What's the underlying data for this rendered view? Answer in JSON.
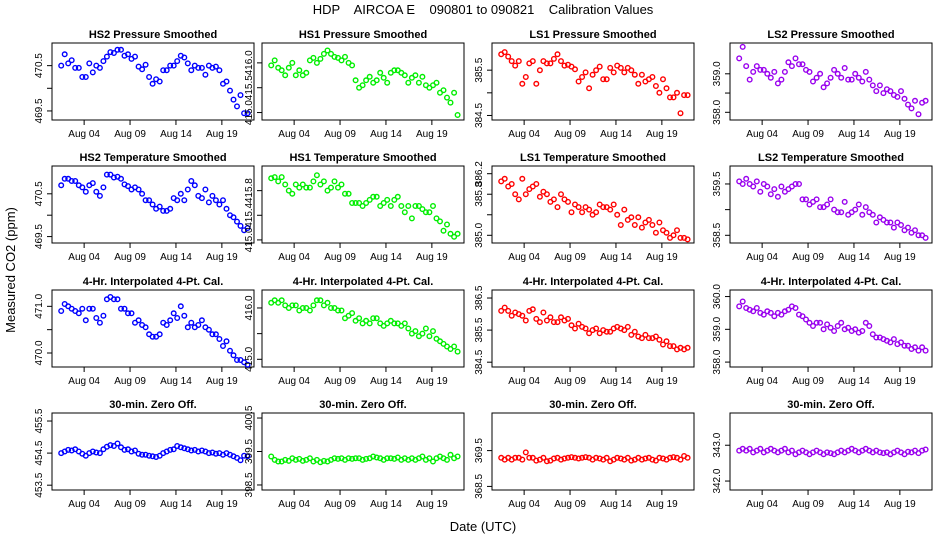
{
  "figure": {
    "title": "HDP    AIRCOA E    090801 to 090821    Calibration Values",
    "xlabel": "Date (UTC)",
    "ylabel": "Measured CO2 (ppm)"
  },
  "x_axis": {
    "range_days": [
      0.5,
      22.5
    ],
    "ticks": [
      {
        "day": 4,
        "label": "Aug 04"
      },
      {
        "day": 9,
        "label": "Aug 09"
      },
      {
        "day": 14,
        "label": "Aug 14"
      },
      {
        "day": 19,
        "label": "Aug 19"
      }
    ]
  },
  "colors": {
    "blue": "#0000ff",
    "green": "#00ee00",
    "red": "#ff0000",
    "purple": "#9900ee"
  },
  "chart_data": [
    {
      "id": "p00",
      "type": "scatter",
      "title": "HS2 Pressure Smoothed",
      "color": "blue",
      "ylim": [
        469.3,
        471.0
      ],
      "yticks": [
        469.5,
        470.0,
        470.5
      ],
      "yticklabels": [
        "469.5",
        "",
        "470.5"
      ],
      "y": [
        470.5,
        470.75,
        470.55,
        470.62,
        470.45,
        470.45,
        470.25,
        470.25,
        470.55,
        470.35,
        470.5,
        470.45,
        470.6,
        470.7,
        470.8,
        470.78,
        470.85,
        470.85,
        470.72,
        470.75,
        470.65,
        470.7,
        470.48,
        470.42,
        470.52,
        470.25,
        470.1,
        470.2,
        470.15,
        470.4,
        470.4,
        470.5,
        470.5,
        470.6,
        470.72,
        470.68,
        470.55,
        470.4,
        470.5,
        470.45,
        470.45,
        470.3,
        470.5,
        470.45,
        470.48,
        470.4,
        470.1,
        470.15,
        469.95,
        469.75,
        469.6,
        469.85,
        469.45,
        469.45
      ]
    },
    {
      "id": "p01",
      "type": "scatter",
      "title": "HS1 Pressure Smoothed",
      "color": "green",
      "ylim": [
        414.85,
        416.4
      ],
      "yticks": [
        415.0,
        415.5,
        416.0
      ],
      "yticklabels": [
        "415.0",
        "415.5",
        "416.0"
      ],
      "y": [
        415.95,
        416.05,
        415.9,
        415.85,
        415.75,
        415.9,
        416.0,
        415.75,
        415.85,
        415.75,
        415.8,
        416.05,
        416.1,
        416.0,
        416.08,
        416.18,
        416.25,
        416.18,
        416.12,
        416.1,
        416.05,
        416.12,
        416.0,
        415.95,
        415.65,
        415.5,
        415.55,
        415.65,
        415.72,
        415.6,
        415.65,
        415.8,
        415.7,
        415.6,
        415.8,
        415.85,
        415.85,
        415.8,
        415.75,
        415.6,
        415.7,
        415.75,
        415.6,
        415.72,
        415.55,
        415.5,
        415.55,
        415.6,
        415.4,
        415.45,
        415.3,
        415.2,
        415.4,
        414.95
      ]
    },
    {
      "id": "p02",
      "type": "scatter",
      "title": "LS1 Pressure Smoothed",
      "color": "red",
      "ylim": [
        384.4,
        386.1
      ],
      "yticks": [
        384.5,
        385.0,
        385.5
      ],
      "yticklabels": [
        "384.5",
        "",
        "385.5"
      ],
      "y": [
        385.85,
        385.9,
        385.8,
        385.7,
        385.6,
        385.7,
        385.2,
        385.35,
        385.65,
        385.7,
        385.2,
        385.5,
        385.7,
        385.65,
        385.65,
        385.75,
        385.85,
        385.7,
        385.6,
        385.62,
        385.58,
        385.52,
        385.25,
        385.35,
        385.45,
        385.1,
        385.4,
        385.5,
        385.58,
        385.3,
        385.3,
        385.55,
        385.45,
        385.6,
        385.55,
        385.45,
        385.55,
        385.5,
        385.4,
        385.2,
        385.4,
        385.25,
        385.3,
        385.35,
        385.15,
        385.0,
        385.3,
        385.1,
        384.9,
        384.9,
        385.0,
        384.55,
        384.95,
        384.95
      ]
    },
    {
      "id": "p03",
      "type": "scatter",
      "title": "LS2 Pressure Smoothed",
      "color": "purple",
      "ylim": [
        357.8,
        359.8
      ],
      "yticks": [
        358.0,
        358.5,
        359.0
      ],
      "yticklabels": [
        "358.0",
        "",
        "359.0"
      ],
      "y": [
        359.4,
        359.7,
        359.2,
        358.85,
        359.05,
        359.2,
        359.1,
        359.1,
        359.0,
        358.9,
        359.05,
        358.75,
        358.85,
        359.05,
        359.3,
        359.2,
        359.4,
        359.25,
        359.25,
        359.1,
        359.05,
        358.8,
        358.9,
        359.0,
        358.65,
        358.75,
        358.9,
        359.1,
        359.0,
        358.9,
        359.15,
        358.85,
        358.85,
        359.0,
        358.9,
        358.8,
        359.05,
        358.85,
        358.7,
        358.55,
        358.7,
        358.5,
        358.6,
        358.55,
        358.45,
        358.4,
        358.55,
        358.35,
        358.2,
        358.1,
        358.3,
        357.95,
        358.25,
        358.3
      ]
    },
    {
      "id": "p10",
      "type": "scatter",
      "title": "HS2 Temperature Smoothed",
      "color": "blue",
      "ylim": [
        469.35,
        471.15
      ],
      "yticks": [
        469.5,
        470.0,
        470.5
      ],
      "yticklabels": [
        "469.5",
        "",
        "470.5"
      ],
      "y": [
        470.7,
        470.85,
        470.85,
        470.8,
        470.8,
        470.7,
        470.65,
        470.55,
        470.7,
        470.75,
        470.55,
        470.45,
        470.65,
        470.95,
        470.95,
        470.88,
        470.9,
        470.85,
        470.72,
        470.68,
        470.6,
        470.65,
        470.6,
        470.5,
        470.35,
        470.35,
        470.25,
        470.15,
        470.2,
        470.1,
        470.1,
        470.15,
        470.4,
        470.35,
        470.5,
        470.35,
        470.6,
        470.8,
        470.7,
        470.45,
        470.4,
        470.6,
        470.3,
        470.45,
        470.35,
        470.25,
        470.35,
        470.15,
        470.0,
        469.95,
        469.85,
        469.75,
        469.65,
        469.7
      ]
    },
    {
      "id": "p11",
      "type": "scatter",
      "title": "HS1 Temperature Smoothed",
      "color": "green",
      "ylim": [
        414.95,
        416.2
      ],
      "yticks": [
        415.0,
        415.4,
        415.8
      ],
      "yticklabels": [
        "415.0",
        "415.4",
        "415.8"
      ],
      "y": [
        416.0,
        416.02,
        415.95,
        416.02,
        415.9,
        415.8,
        415.75,
        415.9,
        415.85,
        415.9,
        415.85,
        415.85,
        415.95,
        416.05,
        415.9,
        415.95,
        415.8,
        415.85,
        415.95,
        415.85,
        415.9,
        415.75,
        415.75,
        415.6,
        415.6,
        415.6,
        415.55,
        415.6,
        415.65,
        415.7,
        415.7,
        415.55,
        415.6,
        415.65,
        415.55,
        415.65,
        415.7,
        415.55,
        415.45,
        415.55,
        415.35,
        415.55,
        415.55,
        415.5,
        415.45,
        415.45,
        415.55,
        415.35,
        415.3,
        415.15,
        415.25,
        415.1,
        415.05,
        415.1
      ]
    },
    {
      "id": "p12",
      "type": "scatter",
      "title": "LS1 Temperature Smoothed",
      "color": "red",
      "ylim": [
        384.85,
        386.35
      ],
      "yticks": [
        385.0,
        385.4,
        385.8,
        386.2
      ],
      "yticklabels": [
        "385.0",
        "",
        "385.8",
        "386.2"
      ],
      "y": [
        386.05,
        386.1,
        385.95,
        386.0,
        385.8,
        385.7,
        386.1,
        385.8,
        385.9,
        385.95,
        386.0,
        385.75,
        385.85,
        385.8,
        385.65,
        385.7,
        385.55,
        385.8,
        385.7,
        385.65,
        385.45,
        385.6,
        385.55,
        385.45,
        385.55,
        385.5,
        385.4,
        385.45,
        385.6,
        385.55,
        385.55,
        385.5,
        385.6,
        385.4,
        385.2,
        385.5,
        385.3,
        385.35,
        385.2,
        385.35,
        385.15,
        385.25,
        385.3,
        385.2,
        385.05,
        385.25,
        385.1,
        385.05,
        384.95,
        385.0,
        385.1,
        384.95,
        384.95,
        384.92
      ]
    },
    {
      "id": "p13",
      "type": "scatter",
      "title": "LS2 Temperature Smoothed",
      "color": "purple",
      "ylim": [
        358.35,
        359.85
      ],
      "yticks": [
        358.5,
        359.0,
        359.5
      ],
      "yticklabels": [
        "358.5",
        "",
        "359.5"
      ],
      "y": [
        359.55,
        359.5,
        359.6,
        359.5,
        359.45,
        359.55,
        359.35,
        359.5,
        359.45,
        359.3,
        359.4,
        359.25,
        359.45,
        359.35,
        359.4,
        359.45,
        359.5,
        359.5,
        359.2,
        359.2,
        359.1,
        359.15,
        359.2,
        359.05,
        359.05,
        359.1,
        359.2,
        359.0,
        358.95,
        358.95,
        359.15,
        358.9,
        358.95,
        359.0,
        359.1,
        358.9,
        359.05,
        358.95,
        358.9,
        358.75,
        358.85,
        358.8,
        358.75,
        358.75,
        358.65,
        358.75,
        358.7,
        358.6,
        358.65,
        358.55,
        358.6,
        358.5,
        358.5,
        358.45
      ]
    },
    {
      "id": "p20",
      "type": "scatter",
      "title": "4-Hr. Interpolated 4-Pt. Cal.",
      "color": "blue",
      "ylim": [
        469.7,
        471.35
      ],
      "yticks": [
        470.0,
        470.5,
        471.0
      ],
      "yticklabels": [
        "470.0",
        "",
        "471.0"
      ],
      "y": [
        470.9,
        471.05,
        471.0,
        470.95,
        470.9,
        470.85,
        470.95,
        470.7,
        470.95,
        470.95,
        470.75,
        470.65,
        470.8,
        471.15,
        471.2,
        471.15,
        471.15,
        470.95,
        470.95,
        470.85,
        470.85,
        470.65,
        470.7,
        470.6,
        470.55,
        470.4,
        470.35,
        470.35,
        470.4,
        470.65,
        470.6,
        470.7,
        470.85,
        470.75,
        471.0,
        470.8,
        470.55,
        470.65,
        470.55,
        470.6,
        470.7,
        470.55,
        470.5,
        470.4,
        470.4,
        470.3,
        470.15,
        470.25,
        470.05,
        469.95,
        469.85,
        469.85,
        469.8,
        469.75
      ]
    },
    {
      "id": "p21",
      "type": "scatter",
      "title": "4-Hr. Interpolated 4-Pt. Cal.",
      "color": "green",
      "ylim": [
        414.85,
        416.35
      ],
      "yticks": [
        415.0,
        415.5,
        416.0
      ],
      "yticklabels": [
        "415.0",
        "",
        "416.0"
      ],
      "y": [
        416.1,
        416.15,
        416.1,
        416.15,
        416.05,
        416.0,
        416.05,
        416.05,
        415.95,
        416.0,
        416.0,
        415.95,
        416.05,
        416.15,
        416.15,
        416.05,
        416.1,
        416.0,
        416.0,
        415.95,
        415.95,
        415.8,
        415.85,
        415.9,
        415.75,
        415.8,
        415.7,
        415.75,
        415.7,
        415.8,
        415.8,
        415.7,
        415.65,
        415.7,
        415.75,
        415.7,
        415.7,
        415.65,
        415.7,
        415.6,
        415.5,
        415.55,
        415.45,
        415.5,
        415.6,
        415.45,
        415.55,
        415.4,
        415.35,
        415.3,
        415.25,
        415.2,
        415.25,
        415.15
      ]
    },
    {
      "id": "p22",
      "type": "scatter",
      "title": "4-Hr. Interpolated 4-Pt. Cal.",
      "color": "red",
      "ylim": [
        384.35,
        386.75
      ],
      "yticks": [
        384.5,
        385.5,
        386.5
      ],
      "yticklabels": [
        "384.5",
        "385.5",
        "386.5"
      ],
      "y": [
        386.1,
        386.2,
        386.1,
        385.95,
        386.05,
        386.0,
        385.95,
        385.8,
        386.1,
        386.15,
        385.85,
        385.75,
        386.05,
        385.8,
        385.9,
        385.75,
        385.75,
        385.9,
        385.8,
        385.85,
        385.65,
        385.55,
        385.7,
        385.6,
        385.55,
        385.4,
        385.5,
        385.55,
        385.4,
        385.5,
        385.45,
        385.45,
        385.55,
        385.6,
        385.55,
        385.5,
        385.6,
        385.35,
        385.45,
        385.3,
        385.25,
        385.35,
        385.25,
        385.25,
        385.3,
        385.2,
        385.05,
        385.15,
        385.0,
        385.0,
        384.9,
        384.95,
        384.9,
        384.95
      ]
    },
    {
      "id": "p23",
      "type": "scatter",
      "title": "4-Hr. Interpolated 4-Pt. Cal.",
      "color": "purple",
      "ylim": [
        357.85,
        360.2
      ],
      "yticks": [
        358.0,
        359.0,
        360.0
      ],
      "yticklabels": [
        "358.0",
        "359.0",
        "360.0"
      ],
      "y": [
        359.7,
        359.85,
        359.65,
        359.6,
        359.55,
        359.65,
        359.5,
        359.45,
        359.55,
        359.5,
        359.4,
        359.5,
        359.45,
        359.55,
        359.6,
        359.7,
        359.65,
        359.45,
        359.4,
        359.3,
        359.2,
        359.1,
        359.2,
        359.2,
        359.0,
        359.15,
        359.05,
        358.95,
        359.1,
        359.2,
        359.0,
        359.05,
        358.95,
        359.0,
        358.9,
        358.95,
        359.2,
        359.1,
        358.85,
        358.75,
        358.75,
        358.7,
        358.65,
        358.6,
        358.7,
        358.55,
        358.6,
        358.5,
        358.5,
        358.4,
        358.45,
        358.35,
        358.45,
        358.35
      ]
    },
    {
      "id": "p30",
      "type": "scatter",
      "title": "30-min. Zero Off.",
      "color": "blue",
      "ylim": [
        453.35,
        455.75
      ],
      "yticks": [
        453.5,
        454.5,
        455.5
      ],
      "yticklabels": [
        "453.5",
        "454.5",
        "455.5"
      ],
      "y": [
        454.5,
        454.55,
        454.6,
        454.58,
        454.62,
        454.55,
        454.48,
        454.42,
        454.5,
        454.55,
        454.52,
        454.5,
        454.62,
        454.7,
        454.75,
        454.72,
        454.8,
        454.68,
        454.6,
        454.62,
        454.55,
        454.58,
        454.48,
        454.45,
        454.45,
        454.42,
        454.4,
        454.38,
        454.42,
        454.5,
        454.55,
        454.6,
        454.62,
        454.72,
        454.68,
        454.65,
        454.62,
        454.58,
        454.6,
        454.55,
        454.58,
        454.55,
        454.5,
        454.52,
        454.48,
        454.5,
        454.45,
        454.5,
        454.45,
        454.4,
        454.35,
        454.28,
        454.42,
        454.4
      ]
    },
    {
      "id": "p31",
      "type": "scatter",
      "title": "30-min. Zero Off.",
      "color": "green",
      "ylim": [
        398.35,
        400.65
      ],
      "yticks": [
        398.5,
        399.5,
        400.5
      ],
      "yticklabels": [
        "398.5",
        "399.5",
        "400.5"
      ],
      "y": [
        399.35,
        399.25,
        399.2,
        399.2,
        399.25,
        399.22,
        399.3,
        399.25,
        399.28,
        399.22,
        399.25,
        399.3,
        399.2,
        399.25,
        399.18,
        399.22,
        399.2,
        399.25,
        399.3,
        399.28,
        399.3,
        399.25,
        399.3,
        399.28,
        399.3,
        399.3,
        399.25,
        399.28,
        399.3,
        399.35,
        399.32,
        399.3,
        399.25,
        399.3,
        399.3,
        399.28,
        399.32,
        399.25,
        399.3,
        399.25,
        399.3,
        399.25,
        399.3,
        399.35,
        399.25,
        399.3,
        399.2,
        399.3,
        399.35,
        399.3,
        399.25,
        399.4,
        399.3,
        399.35
      ]
    },
    {
      "id": "p32",
      "type": "scatter",
      "title": "30-min. Zero Off.",
      "color": "red",
      "ylim": [
        368.4,
        370.55
      ],
      "yticks": [
        368.5,
        369.5
      ],
      "yticklabels": [
        "368.5",
        "369.5"
      ],
      "y": [
        369.3,
        369.25,
        369.3,
        369.25,
        369.3,
        369.3,
        369.25,
        369.45,
        369.3,
        369.3,
        369.22,
        369.25,
        369.3,
        369.2,
        369.22,
        369.28,
        369.3,
        369.25,
        369.28,
        369.3,
        369.32,
        369.3,
        369.28,
        369.3,
        369.32,
        369.3,
        369.25,
        369.3,
        369.28,
        369.25,
        369.3,
        369.2,
        369.25,
        369.3,
        369.28,
        369.25,
        369.3,
        369.22,
        369.25,
        369.3,
        369.25,
        369.28,
        369.3,
        369.25,
        369.22,
        369.3,
        369.28,
        369.25,
        369.3,
        369.32,
        369.3,
        369.25,
        369.35,
        369.3
      ]
    },
    {
      "id": "p33",
      "type": "scatter",
      "title": "30-min. Zero Off.",
      "color": "purple",
      "ylim": [
        341.75,
        343.9
      ],
      "yticks": [
        342.0,
        343.0
      ],
      "yticklabels": [
        "342.0",
        "343.0"
      ],
      "y": [
        342.85,
        342.9,
        342.85,
        342.9,
        342.8,
        342.85,
        342.9,
        342.8,
        342.85,
        342.9,
        342.85,
        342.8,
        342.85,
        342.9,
        342.8,
        342.85,
        342.75,
        342.8,
        342.85,
        342.8,
        342.75,
        342.8,
        342.85,
        342.8,
        342.75,
        342.8,
        342.78,
        342.75,
        342.8,
        342.85,
        342.8,
        342.85,
        342.9,
        342.85,
        342.8,
        342.85,
        342.9,
        342.85,
        342.8,
        342.85,
        342.8,
        342.78,
        342.8,
        342.75,
        342.8,
        342.85,
        342.8,
        342.75,
        342.82,
        342.8,
        342.85,
        342.78,
        342.85,
        342.88
      ]
    }
  ]
}
